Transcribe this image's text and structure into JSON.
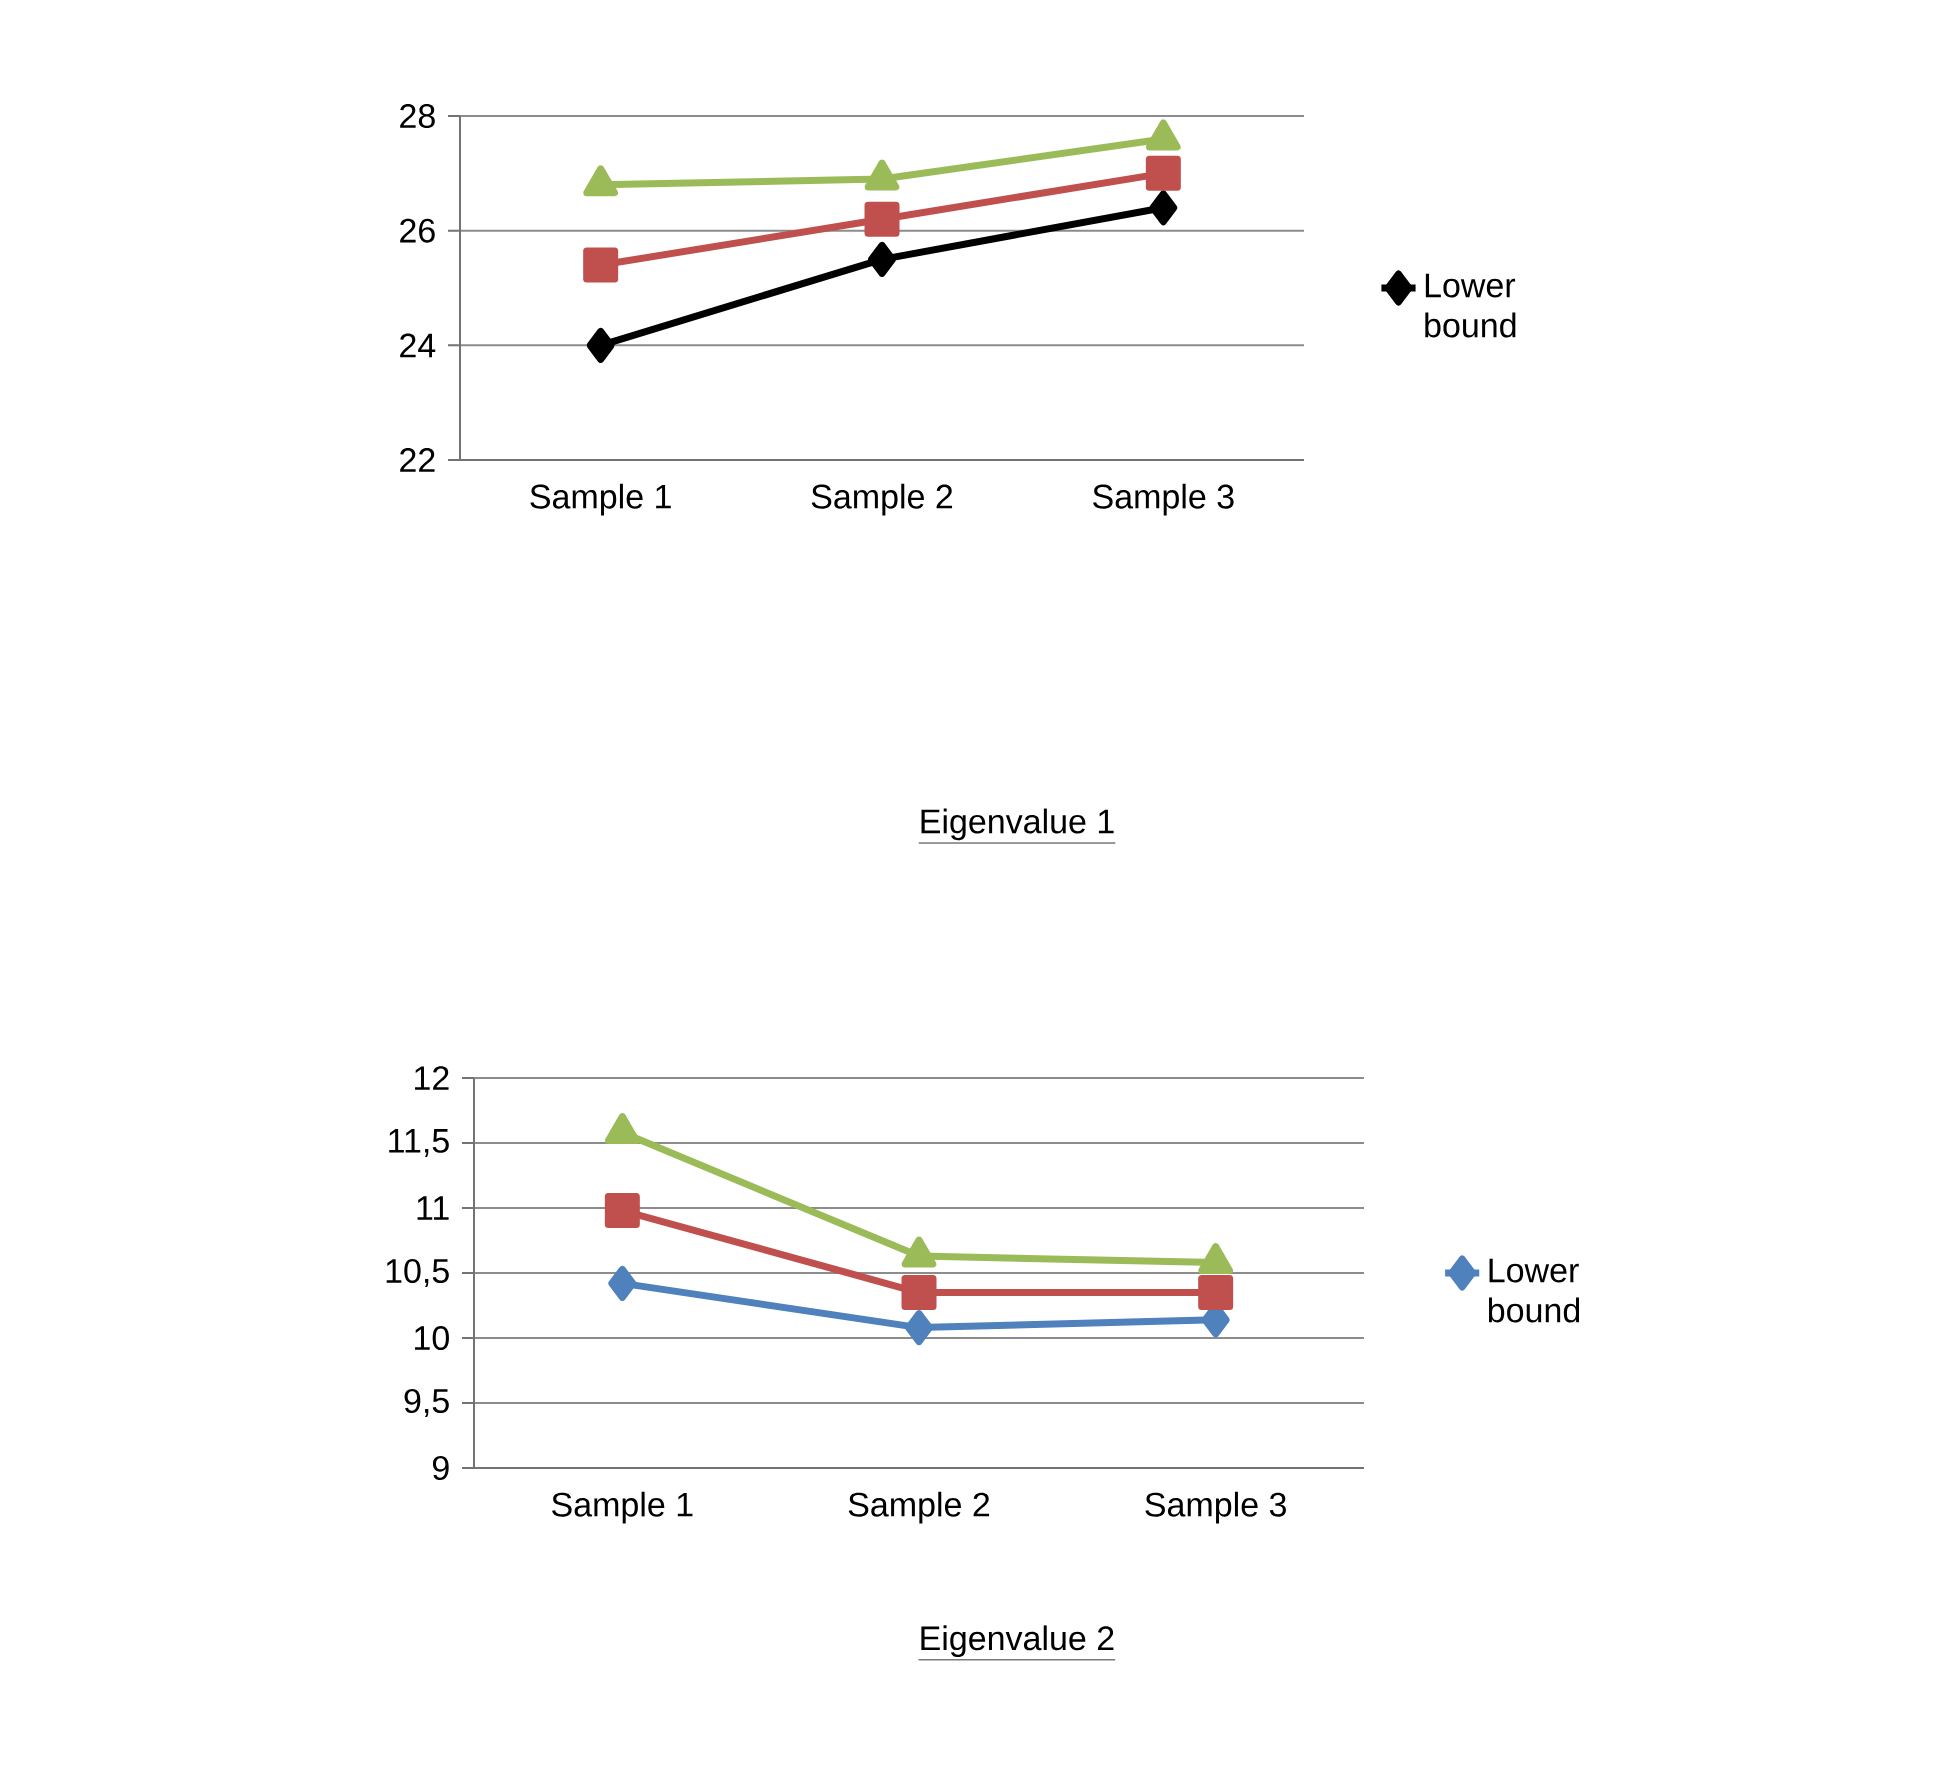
{
  "chart_data": [
    {
      "type": "line",
      "title": "Eigenvalue 1",
      "categories": [
        "Sample 1",
        "Sample 2",
        "Sample 3"
      ],
      "series": [
        {
          "name": "Lower bound",
          "color": "#000000",
          "marker": "diamond",
          "values": [
            24,
            25.5,
            26.4
          ]
        },
        {
          "color": "#c0504d",
          "marker": "square",
          "values": [
            25.4,
            26.2,
            27.0
          ]
        },
        {
          "color": "#9bbb59",
          "marker": "triangle",
          "values": [
            26.8,
            26.9,
            27.6
          ]
        }
      ],
      "ylim": [
        22,
        28
      ],
      "yticks": [
        22,
        24,
        26,
        28
      ],
      "grid": "y",
      "legend": "right",
      "line_style": "solid"
    },
    {
      "type": "line",
      "title": "Eigenvalue 2",
      "categories": [
        "Sample 1",
        "Sample 2",
        "Sample 3"
      ],
      "series": [
        {
          "name": "Lower bound",
          "color": "#4f81bd",
          "marker": "diamond",
          "values": [
            10.42,
            10.08,
            10.14
          ]
        },
        {
          "color": "#c0504d",
          "marker": "square",
          "values": [
            10.98,
            10.35,
            10.35
          ]
        },
        {
          "color": "#9bbb59",
          "marker": "triangle",
          "values": [
            11.58,
            10.63,
            10.58
          ]
        }
      ],
      "ylim": [
        9,
        12
      ],
      "yticks": [
        9,
        {
          "value": 9.5,
          "label": "9,5"
        },
        10,
        {
          "value": 10.5,
          "label": "10,5"
        },
        11,
        {
          "value": 11.5,
          "label": "11,5"
        },
        12
      ],
      "grid": "y",
      "legend": "right",
      "line_style": "solid"
    }
  ]
}
